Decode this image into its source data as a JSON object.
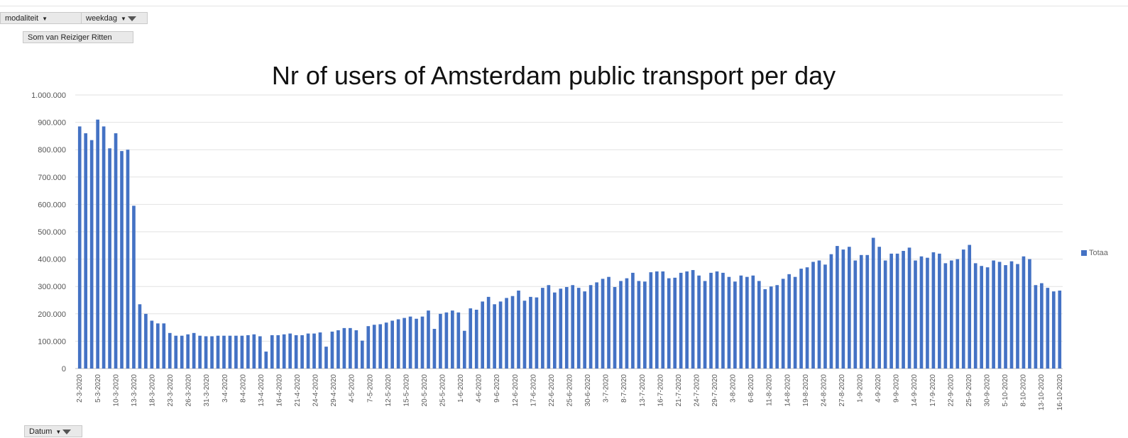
{
  "filters": {
    "modaliteit": "modaliteit",
    "weekdag": "weekdag",
    "values_field": "Som van Reiziger Ritten",
    "axis_field": "Datum"
  },
  "chart_data": {
    "type": "bar",
    "title": "Nr of users of Amsterdam public transport per day",
    "xlabel": "",
    "ylabel": "",
    "ylim": [
      0,
      1000000
    ],
    "y_ticks": [
      "0",
      "100.000",
      "200.000",
      "300.000",
      "400.000",
      "500.000",
      "600.000",
      "700.000",
      "800.000",
      "900.000",
      "1.000.000"
    ],
    "legend": {
      "label": "Totaa",
      "position": "right"
    },
    "bar_color": "#4472c4",
    "x_tick_labels": [
      "2-3-2020",
      "5-3-2020",
      "10-3-2020",
      "13-3-2020",
      "18-3-2020",
      "23-3-2020",
      "26-3-2020",
      "31-3-2020",
      "3-4-2020",
      "8-4-2020",
      "13-4-2020",
      "16-4-2020",
      "21-4-2020",
      "24-4-2020",
      "29-4-2020",
      "4-5-2020",
      "7-5-2020",
      "12-5-2020",
      "15-5-2020",
      "20-5-2020",
      "25-5-2020",
      "1-6-2020",
      "4-6-2020",
      "9-6-2020",
      "12-6-2020",
      "17-6-2020",
      "22-6-2020",
      "25-6-2020",
      "30-6-2020",
      "3-7-2020",
      "8-7-2020",
      "13-7-2020",
      "16-7-2020",
      "21-7-2020",
      "24-7-2020",
      "29-7-2020",
      "3-8-2020",
      "6-8-2020",
      "11-8-2020",
      "14-8-2020",
      "19-8-2020",
      "24-8-2020",
      "27-8-2020",
      "1-9-2020",
      "4-9-2020",
      "9-9-2020",
      "14-9-2020",
      "17-9-2020",
      "22-9-2020",
      "25-9-2020",
      "30-9-2020",
      "5-10-2020",
      "8-10-2020",
      "13-10-2020",
      "16-10-2020"
    ],
    "values": [
      885000,
      860000,
      835000,
      910000,
      885000,
      805000,
      860000,
      795000,
      800000,
      595000,
      235000,
      200000,
      175000,
      165000,
      165000,
      130000,
      120000,
      120000,
      125000,
      130000,
      120000,
      118000,
      118000,
      120000,
      120000,
      120000,
      120000,
      120000,
      122000,
      125000,
      118000,
      62000,
      122000,
      122000,
      125000,
      128000,
      122000,
      122000,
      128000,
      128000,
      132000,
      80000,
      135000,
      140000,
      148000,
      148000,
      140000,
      102000,
      155000,
      160000,
      162000,
      168000,
      175000,
      180000,
      185000,
      190000,
      182000,
      190000,
      212000,
      145000,
      200000,
      205000,
      212000,
      205000,
      138000,
      220000,
      215000,
      245000,
      262000,
      235000,
      245000,
      258000,
      265000,
      285000,
      248000,
      262000,
      260000,
      295000,
      305000,
      278000,
      292000,
      298000,
      305000,
      295000,
      282000,
      305000,
      315000,
      328000,
      335000,
      298000,
      320000,
      330000,
      350000,
      320000,
      318000,
      352000,
      355000,
      355000,
      330000,
      332000,
      350000,
      355000,
      360000,
      340000,
      320000,
      350000,
      355000,
      350000,
      335000,
      318000,
      340000,
      335000,
      340000,
      320000,
      290000,
      300000,
      305000,
      328000,
      345000,
      335000,
      365000,
      370000,
      390000,
      395000,
      380000,
      418000,
      448000,
      435000,
      445000,
      395000,
      415000,
      415000,
      478000,
      445000,
      395000,
      420000,
      420000,
      430000,
      442000,
      395000,
      410000,
      405000,
      425000,
      420000,
      385000,
      395000,
      400000,
      435000,
      452000,
      385000,
      375000,
      370000,
      395000,
      390000,
      378000,
      392000,
      382000,
      410000,
      400000,
      305000,
      312000,
      295000,
      282000,
      285000
    ]
  }
}
